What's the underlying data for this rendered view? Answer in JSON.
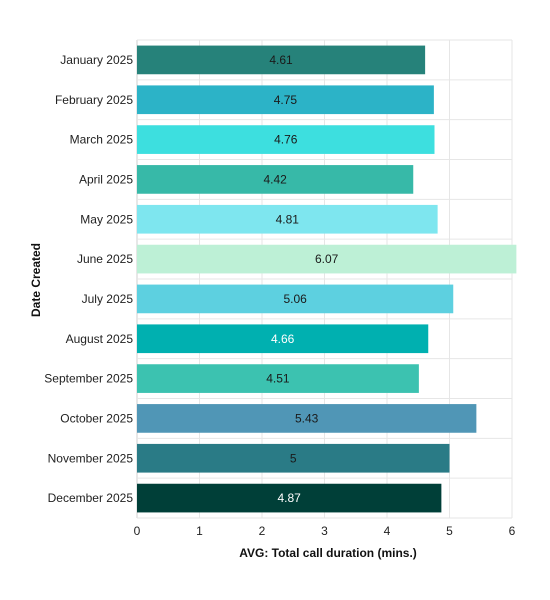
{
  "chart_data": {
    "type": "bar",
    "orientation": "horizontal",
    "categories": [
      "January 2025",
      "February 2025",
      "March 2025",
      "April 2025",
      "May 2025",
      "June 2025",
      "July 2025",
      "August 2025",
      "September 2025",
      "October 2025",
      "November 2025",
      "December 2025"
    ],
    "values": [
      4.61,
      4.75,
      4.76,
      4.42,
      4.81,
      6.07,
      5.06,
      4.66,
      4.51,
      5.43,
      5,
      4.87
    ],
    "data_labels": [
      "4.61",
      "4.75",
      "4.76",
      "4.42",
      "4.81",
      "6.07",
      "5.06",
      "4.66",
      "4.51",
      "5.43",
      "5",
      "4.87"
    ],
    "colors": [
      "#26827a",
      "#2cb3c7",
      "#3ddfdf",
      "#37b9a8",
      "#7ee6ef",
      "#bdf0d6",
      "#5dd0e0",
      "#00b0b0",
      "#3cc2b0",
      "#5096b6",
      "#2a7b86",
      "#003f38"
    ],
    "label_colors": [
      "#1a1a1a",
      "#1a1a1a",
      "#1a1a1a",
      "#1a1a1a",
      "#1a1a1a",
      "#1a1a1a",
      "#1a1a1a",
      "#ffffff",
      "#1a1a1a",
      "#1a1a1a",
      "#1a1a1a",
      "#ffffff"
    ],
    "title": "",
    "xlabel": "AVG: Total call duration (mins.)",
    "ylabel": "Date Created",
    "xlim": [
      0,
      6
    ],
    "xticks": [
      "0",
      "1",
      "2",
      "3",
      "4",
      "5",
      "6"
    ],
    "grid": true,
    "legend": "none"
  }
}
